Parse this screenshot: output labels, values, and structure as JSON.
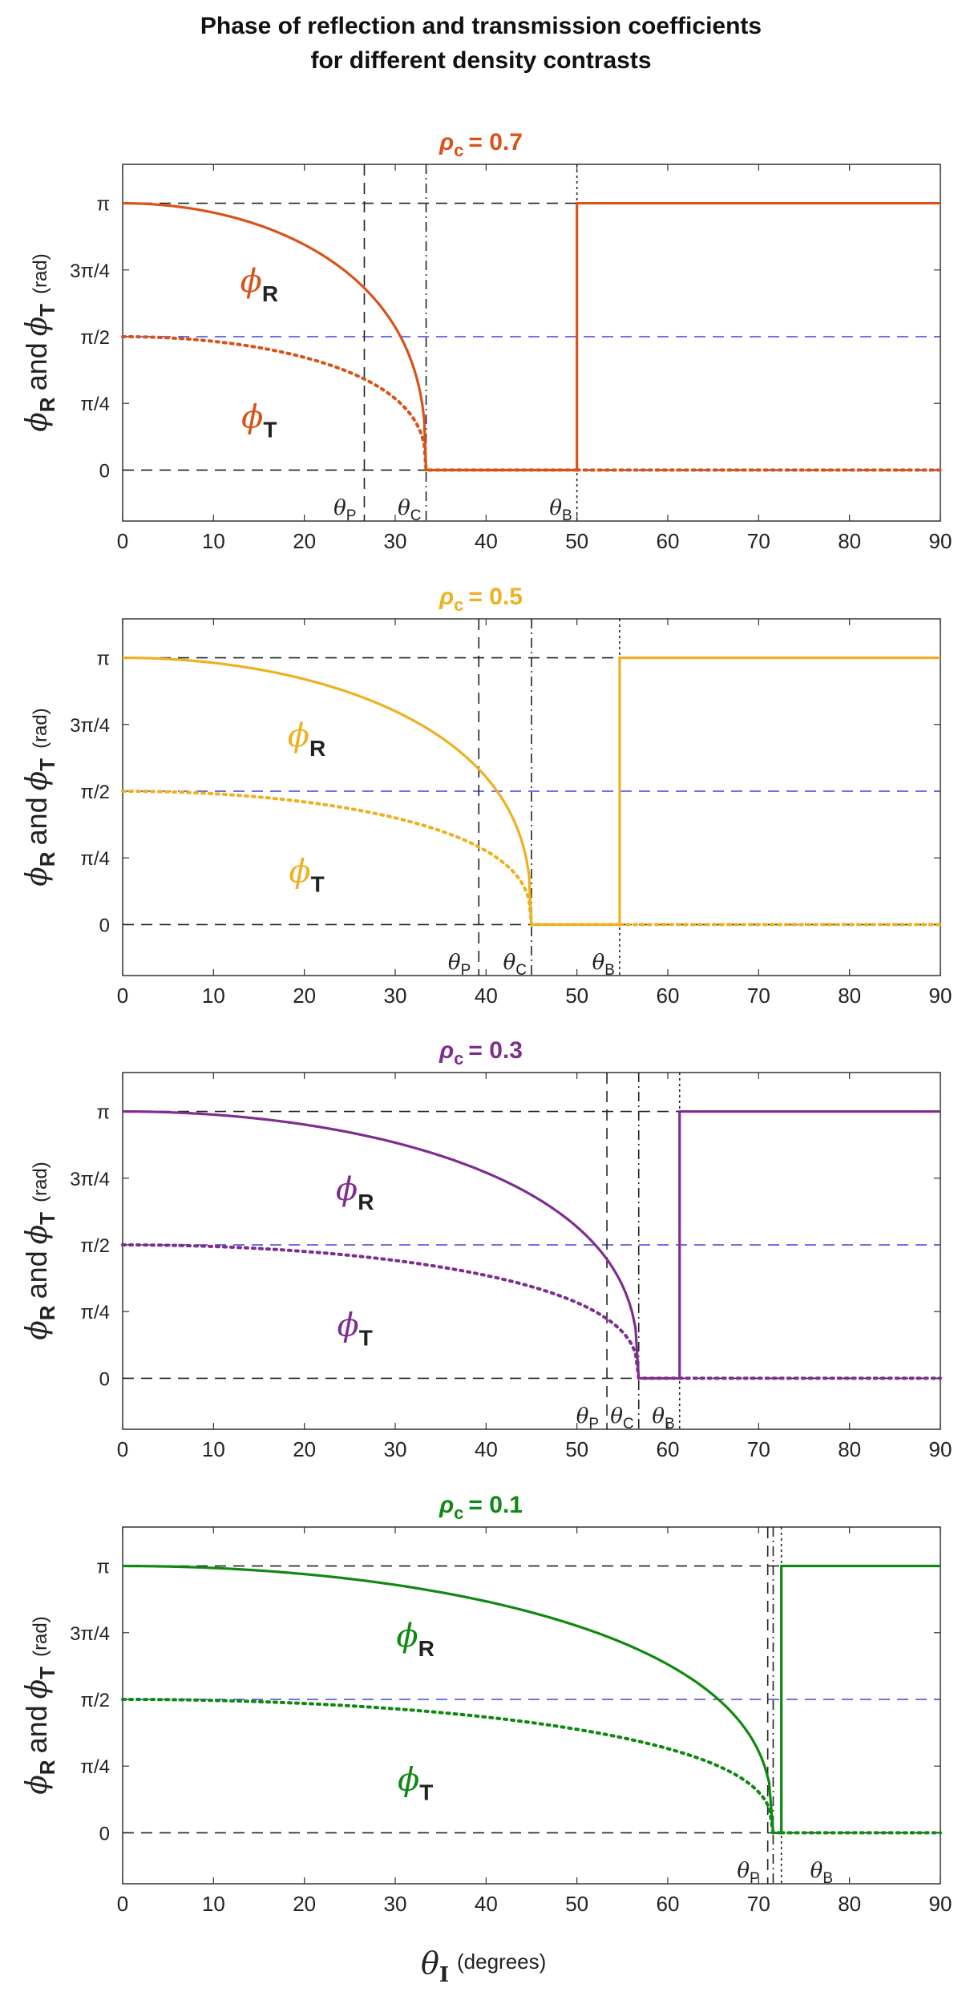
{
  "figure": {
    "title_line1": "Phase of reflection and transmission coefficients",
    "title_line2": "for different density contrasts",
    "xlabel_symbol": "θ",
    "xlabel_sub": "I",
    "xlabel_units": "(degrees)",
    "ylabel": {
      "phi": "ϕ",
      "r_sub": "R",
      "and": "and",
      "t_sub": "T",
      "units": "(rad)"
    }
  },
  "colors": {
    "panel1": "#D95319",
    "panel2": "#EDB120",
    "panel3": "#7E2F8E",
    "panel4": "#118811",
    "blue_line": "#4040E0",
    "black_line": "#222222"
  },
  "chart_data": [
    {
      "type": "line",
      "title_prefix": "ρ",
      "title_sub": "c",
      "title_value": "= 0.7",
      "rho": 0.7,
      "color_key": "panel1",
      "xlim": [
        0,
        90
      ],
      "ylim": [
        -0.6,
        3.6
      ],
      "x_ticks": [
        0,
        10,
        20,
        30,
        40,
        50,
        60,
        70,
        80,
        90
      ],
      "x_tick_labels": [
        "0",
        "10",
        "20",
        "30",
        "40",
        "50",
        "60",
        "70",
        "80",
        "90"
      ],
      "y_ticks": [
        0,
        0.7854,
        1.5708,
        2.3562,
        3.1416
      ],
      "y_tick_labels": [
        "0",
        "π/4",
        "π/2",
        "3π/4",
        "π"
      ],
      "angles": {
        "theta_P": 26.6,
        "theta_C": 33.4,
        "theta_B": 50.0
      },
      "angle_labels": {
        "P": "θP",
        "C": "θC",
        "B": "θB"
      },
      "series": [
        {
          "name": "ϕR",
          "label_base": "ϕ",
          "label_sub": "R",
          "style": "solid",
          "start": 3.1416,
          "end_at_critical": 0,
          "after_brewster": 3.1416
        },
        {
          "name": "ϕT",
          "label_base": "ϕ",
          "label_sub": "T",
          "style": "dotted",
          "start": 1.5708,
          "end_at_critical": 0,
          "after_brewster": 0
        }
      ]
    },
    {
      "type": "line",
      "title_prefix": "ρ",
      "title_sub": "c",
      "title_value": "= 0.5",
      "rho": 0.5,
      "color_key": "panel2",
      "xlim": [
        0,
        90
      ],
      "ylim": [
        -0.6,
        3.6
      ],
      "x_ticks": [
        0,
        10,
        20,
        30,
        40,
        50,
        60,
        70,
        80,
        90
      ],
      "x_tick_labels": [
        "0",
        "10",
        "20",
        "30",
        "40",
        "50",
        "60",
        "70",
        "80",
        "90"
      ],
      "y_ticks": [
        0,
        0.7854,
        1.5708,
        2.3562,
        3.1416
      ],
      "y_tick_labels": [
        "0",
        "π/4",
        "π/2",
        "3π/4",
        "π"
      ],
      "angles": {
        "theta_P": 39.2,
        "theta_C": 45.0,
        "theta_B": 54.7
      },
      "angle_labels": {
        "P": "θP",
        "C": "θC",
        "B": "θB"
      },
      "series": [
        {
          "name": "ϕR",
          "label_base": "ϕ",
          "label_sub": "R",
          "style": "solid",
          "start": 3.1416,
          "end_at_critical": 0,
          "after_brewster": 3.1416
        },
        {
          "name": "ϕT",
          "label_base": "ϕ",
          "label_sub": "T",
          "style": "dotted",
          "start": 1.5708,
          "end_at_critical": 0,
          "after_brewster": 0
        }
      ]
    },
    {
      "type": "line",
      "title_prefix": "ρ",
      "title_sub": "c",
      "title_value": "= 0.3",
      "rho": 0.3,
      "color_key": "panel3",
      "xlim": [
        0,
        90
      ],
      "ylim": [
        -0.6,
        3.6
      ],
      "x_ticks": [
        0,
        10,
        20,
        30,
        40,
        50,
        60,
        70,
        80,
        90
      ],
      "x_tick_labels": [
        "0",
        "10",
        "20",
        "30",
        "40",
        "50",
        "60",
        "70",
        "80",
        "90"
      ],
      "y_ticks": [
        0,
        0.7854,
        1.5708,
        2.3562,
        3.1416
      ],
      "y_tick_labels": [
        "0",
        "π/4",
        "π/2",
        "3π/4",
        "π"
      ],
      "angles": {
        "theta_P": 53.3,
        "theta_C": 56.8,
        "theta_B": 61.3
      },
      "angle_labels": {
        "P": "θP",
        "C": "θC",
        "B": "θB"
      },
      "series": [
        {
          "name": "ϕR",
          "label_base": "ϕ",
          "label_sub": "R",
          "style": "solid",
          "start": 3.1416,
          "end_at_critical": 0,
          "after_brewster": 3.1416
        },
        {
          "name": "ϕT",
          "label_base": "ϕ",
          "label_sub": "T",
          "style": "dotted",
          "start": 1.5708,
          "end_at_critical": 0,
          "after_brewster": 0
        }
      ]
    },
    {
      "type": "line",
      "title_prefix": "ρ",
      "title_sub": "c",
      "title_value": "= 0.1",
      "rho": 0.1,
      "color_key": "panel4",
      "xlim": [
        0,
        90
      ],
      "ylim": [
        -0.6,
        3.6
      ],
      "x_ticks": [
        0,
        10,
        20,
        30,
        40,
        50,
        60,
        70,
        80,
        90
      ],
      "x_tick_labels": [
        "0",
        "10",
        "20",
        "30",
        "40",
        "50",
        "60",
        "70",
        "80",
        "90"
      ],
      "y_ticks": [
        0,
        0.7854,
        1.5708,
        2.3562,
        3.1416
      ],
      "y_tick_labels": [
        "0",
        "π/4",
        "π/2",
        "3π/4",
        "π"
      ],
      "angles": {
        "theta_P": 71.0,
        "theta_C": 71.6,
        "theta_B": 72.5
      },
      "angle_labels": {
        "P": "θP",
        "C": "",
        "B": "θB"
      },
      "series": [
        {
          "name": "ϕR",
          "label_base": "ϕ",
          "label_sub": "R",
          "style": "solid",
          "start": 3.1416,
          "end_at_critical": 0,
          "after_brewster": 3.1416
        },
        {
          "name": "ϕT",
          "label_base": "ϕ",
          "label_sub": "T",
          "style": "dotted",
          "start": 1.5708,
          "end_at_critical": 0,
          "after_brewster": 0
        }
      ]
    }
  ]
}
